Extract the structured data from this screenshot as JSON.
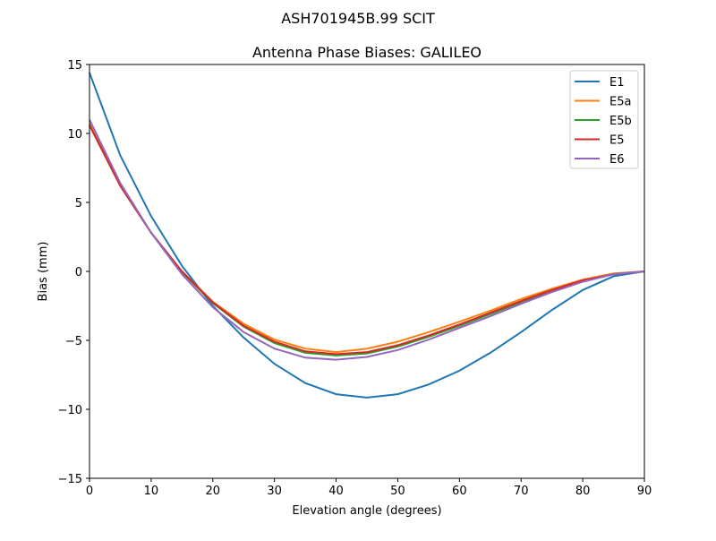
{
  "chart_data": {
    "type": "line",
    "suptitle": "ASH701945B.99   SCIT",
    "title": "Antenna Phase Biases: GALILEO",
    "xlabel": "Elevation angle (degrees)",
    "ylabel": "Bias (mm)",
    "xlim": [
      0,
      90
    ],
    "ylim": [
      -15,
      15
    ],
    "xticks": [
      0,
      10,
      20,
      30,
      40,
      50,
      60,
      70,
      80,
      90
    ],
    "yticks": [
      15,
      10,
      5,
      0,
      -5,
      -10,
      -15
    ],
    "ytick_labels": [
      "15",
      "10",
      "5",
      "0",
      "−5",
      "−10",
      "−15"
    ],
    "grid": false,
    "legend_position": "top-right",
    "x": [
      0,
      5,
      10,
      15,
      20,
      25,
      30,
      35,
      40,
      45,
      50,
      55,
      60,
      65,
      70,
      75,
      80,
      85,
      90
    ],
    "series": [
      {
        "name": "E1",
        "color": "#1f77b4",
        "values": [
          14.4,
          8.4,
          4.0,
          0.4,
          -2.5,
          -4.8,
          -6.7,
          -8.1,
          -8.9,
          -9.15,
          -8.9,
          -8.2,
          -7.2,
          -5.9,
          -4.4,
          -2.8,
          -1.35,
          -0.35,
          0
        ]
      },
      {
        "name": "E5a",
        "color": "#ff7f0e",
        "values": [
          10.7,
          6.3,
          2.8,
          0.0,
          -2.2,
          -3.8,
          -4.95,
          -5.6,
          -5.85,
          -5.6,
          -5.1,
          -4.4,
          -3.65,
          -2.85,
          -2.0,
          -1.25,
          -0.6,
          -0.15,
          0
        ]
      },
      {
        "name": "E5b",
        "color": "#2ca02c",
        "values": [
          10.6,
          6.2,
          2.8,
          -0.05,
          -2.3,
          -4.0,
          -5.2,
          -5.9,
          -6.1,
          -5.95,
          -5.45,
          -4.75,
          -3.95,
          -3.1,
          -2.25,
          -1.4,
          -0.7,
          -0.2,
          0
        ]
      },
      {
        "name": "E5",
        "color": "#d62728",
        "values": [
          10.6,
          6.2,
          2.8,
          0.0,
          -2.25,
          -3.95,
          -5.1,
          -5.8,
          -6.0,
          -5.85,
          -5.35,
          -4.65,
          -3.85,
          -3.0,
          -2.15,
          -1.35,
          -0.65,
          -0.2,
          0
        ]
      },
      {
        "name": "E6",
        "color": "#9467bd",
        "values": [
          11.0,
          6.4,
          2.8,
          -0.2,
          -2.6,
          -4.4,
          -5.6,
          -6.25,
          -6.4,
          -6.2,
          -5.7,
          -4.95,
          -4.1,
          -3.25,
          -2.35,
          -1.5,
          -0.75,
          -0.2,
          0
        ]
      }
    ]
  }
}
